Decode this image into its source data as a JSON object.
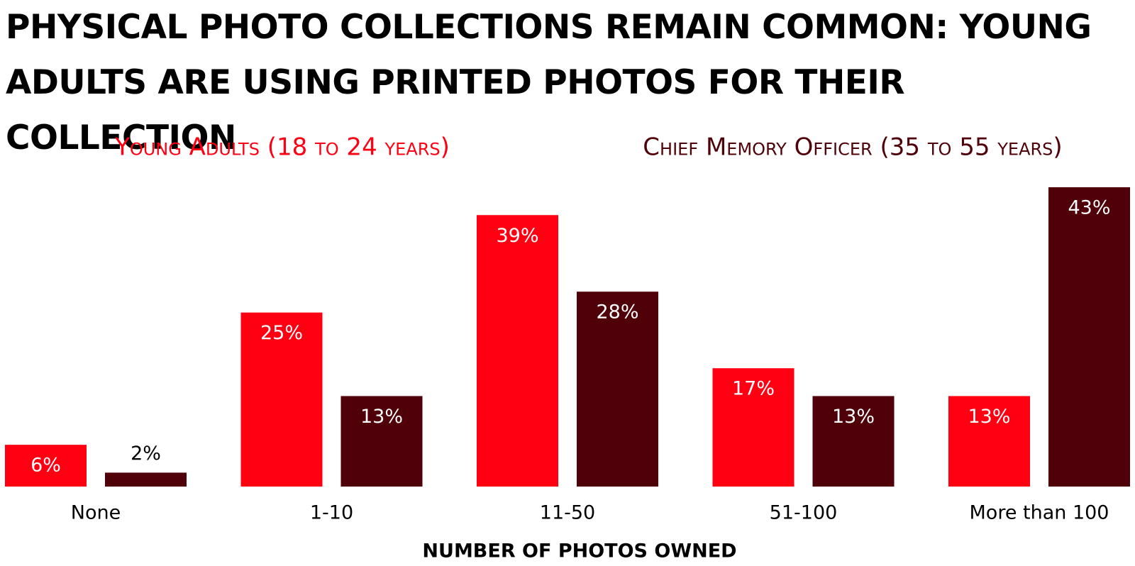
{
  "chart_data": {
    "type": "bar",
    "title": "PHYSICAL PHOTO COLLECTIONS REMAIN COMMON: YOUNG ADULTS ARE USING PRINTED PHOTOS FOR THEIR COLLECTION",
    "x_label": "NUMBER OF PHOTOS OWNED",
    "categories": [
      "None",
      "1-10",
      "11-50",
      "51-100",
      "More than 100"
    ],
    "series": [
      {
        "name": "Young Adults (18 to 24 years)",
        "color": "#ff0013",
        "values": [
          6,
          25,
          39,
          17,
          13
        ],
        "value_labels": [
          "6%",
          "25%",
          "39%",
          "17%",
          "13%"
        ]
      },
      {
        "name": "Chief Memory Officer (35 to 55 years)",
        "color": "#4f0008",
        "values": [
          2,
          13,
          28,
          13,
          43
        ],
        "value_labels": [
          "2%",
          "13%",
          "28%",
          "13%",
          "43%"
        ]
      }
    ],
    "ylim": [
      0,
      43
    ]
  }
}
